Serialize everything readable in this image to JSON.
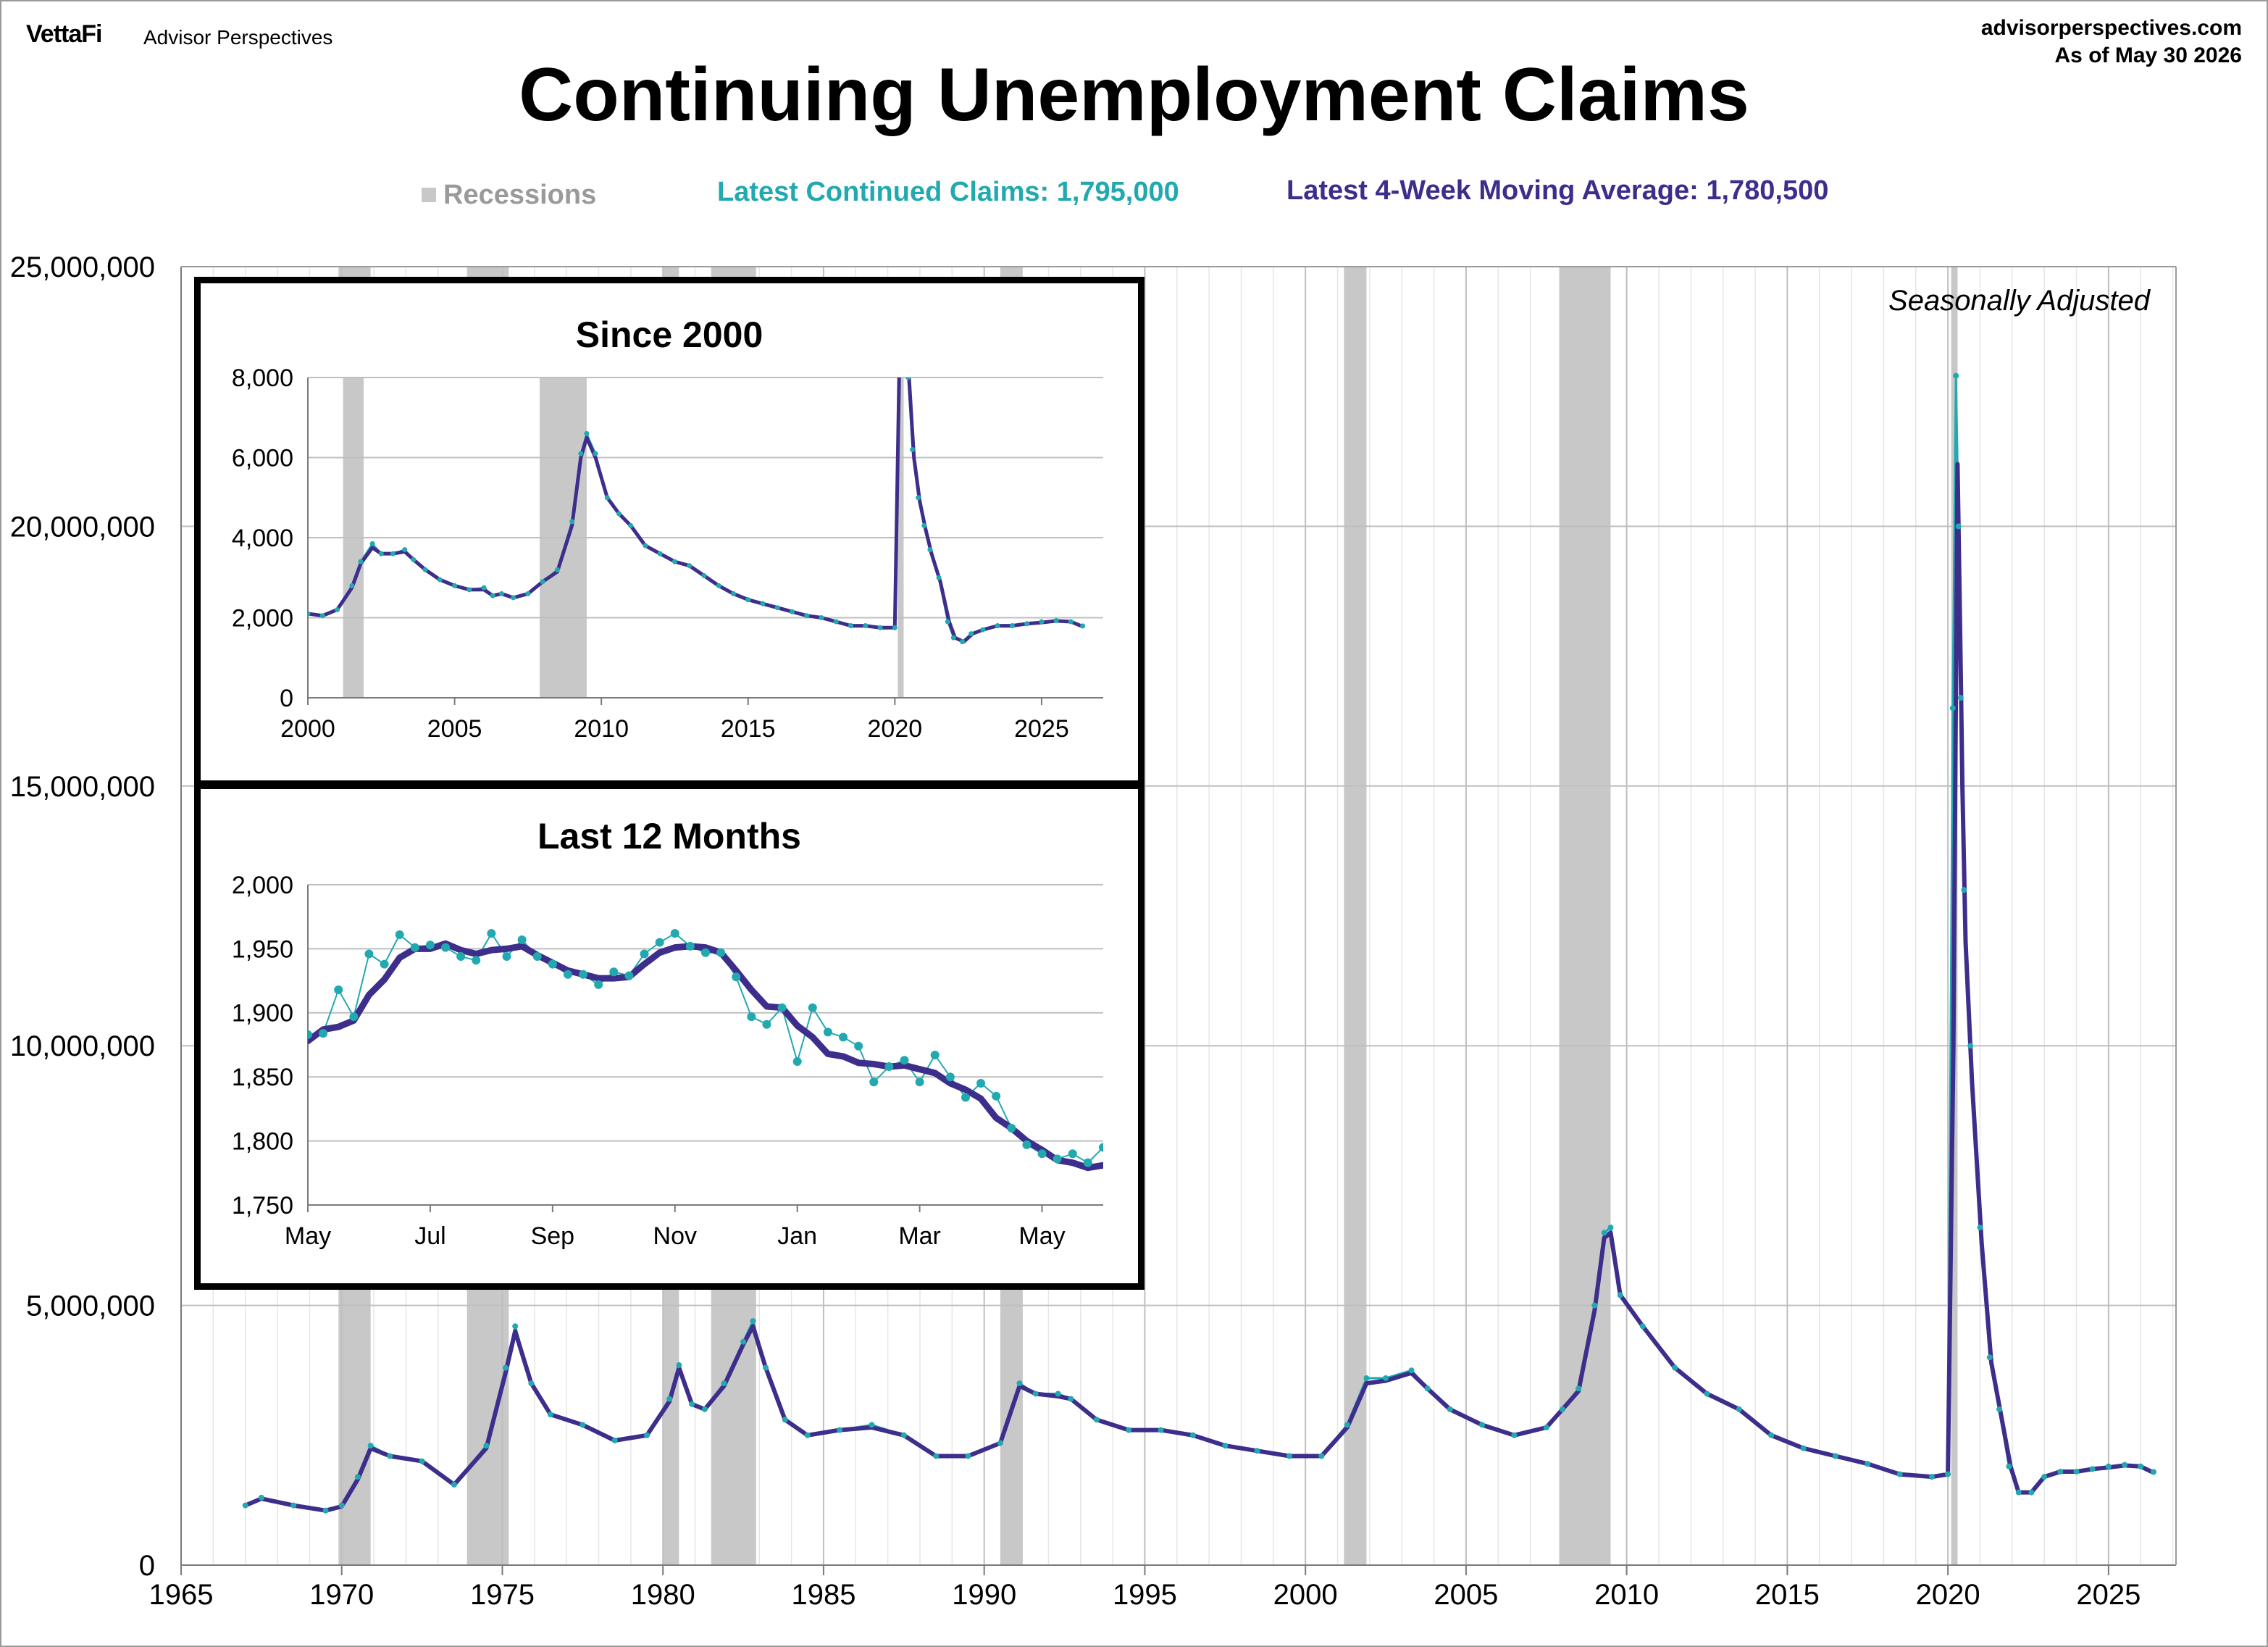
{
  "header": {
    "brand": "VettaFi",
    "brand_sub": "Advisor Perspectives",
    "site": "advisorperspectives.com",
    "as_of": "As of May 30 2026",
    "title": "Continuing Unemployment Claims"
  },
  "legend": {
    "recessions": "Recessions",
    "latest_claims": "Latest Continued Claims: 1,795,000",
    "latest_ma": "Latest 4-Week Moving Average: 1,780,500"
  },
  "colors": {
    "claims": "#22a9b0",
    "moving_average": "#3d2e8c",
    "recession": "#c8c8c8",
    "grid": "#bfbfbf"
  },
  "chart_data": [
    {
      "id": "main",
      "type": "line",
      "annotation": "Seasonally Adjusted",
      "xlim": [
        1965,
        2027.1
      ],
      "ylim": [
        0,
        25000000
      ],
      "x_ticks": [
        "1965",
        "1970",
        "1975",
        "1980",
        "1985",
        "1990",
        "1995",
        "2000",
        "2005",
        "2010",
        "2015",
        "2020",
        "2025"
      ],
      "y_ticks": [
        "0",
        "5,000,000",
        "10,000,000",
        "15,000,000",
        "20,000,000",
        "25,000,000"
      ],
      "recessions": [
        [
          1969.9,
          1970.9
        ],
        [
          1973.9,
          1975.2
        ],
        [
          1980.0,
          1980.5
        ],
        [
          1981.5,
          1982.9
        ],
        [
          1990.5,
          1991.2
        ],
        [
          2001.2,
          2001.9
        ],
        [
          2007.9,
          2009.5
        ],
        [
          2020.1,
          2020.3
        ]
      ],
      "series": [
        {
          "key": "claims",
          "x": [
            1967.0,
            1967.5,
            1968.5,
            1969.5,
            1970.0,
            1970.5,
            1970.9,
            1971.5,
            1972.5,
            1973.5,
            1974.5,
            1975.1,
            1975.4,
            1975.9,
            1976.5,
            1977.5,
            1978.5,
            1979.5,
            1980.2,
            1980.5,
            1980.9,
            1981.3,
            1981.9,
            1982.5,
            1982.8,
            1983.2,
            1983.8,
            1984.5,
            1985.5,
            1986.5,
            1987.5,
            1988.5,
            1989.5,
            1990.5,
            1991.1,
            1991.6,
            1992.3,
            1992.7,
            1993.5,
            1994.5,
            1995.5,
            1996.5,
            1997.5,
            1998.5,
            1999.5,
            2000.5,
            2001.3,
            2001.9,
            2002.5,
            2003.3,
            2003.8,
            2004.5,
            2005.5,
            2006.5,
            2007.5,
            2008.0,
            2008.5,
            2009.0,
            2009.3,
            2009.5,
            2009.8,
            2010.5,
            2011.5,
            2012.5,
            2013.5,
            2014.5,
            2015.5,
            2016.5,
            2017.5,
            2018.5,
            2019.5,
            2020.0,
            2020.15,
            2020.25,
            2020.33,
            2020.4,
            2020.5,
            2020.7,
            2021.0,
            2021.3,
            2021.6,
            2021.9,
            2022.2,
            2022.6,
            2023.0,
            2023.5,
            2024.0,
            2024.5,
            2025.0,
            2025.5,
            2026.0,
            2026.4
          ],
          "y": [
            1150000,
            1300000,
            1150000,
            1050000,
            1150000,
            1700000,
            2300000,
            2100000,
            2000000,
            1550000,
            2300000,
            3800000,
            4600000,
            3500000,
            2900000,
            2700000,
            2400000,
            2500000,
            3200000,
            3850000,
            3100000,
            3000000,
            3500000,
            4300000,
            4700000,
            3800000,
            2800000,
            2500000,
            2600000,
            2700000,
            2500000,
            2100000,
            2100000,
            2350000,
            3500000,
            3300000,
            3300000,
            3200000,
            2800000,
            2600000,
            2600000,
            2500000,
            2300000,
            2200000,
            2100000,
            2100000,
            2700000,
            3600000,
            3600000,
            3750000,
            3400000,
            3000000,
            2700000,
            2500000,
            2650000,
            3000000,
            3400000,
            5000000,
            6400000,
            6500000,
            5200000,
            4600000,
            3800000,
            3300000,
            3000000,
            2500000,
            2250000,
            2100000,
            1950000,
            1750000,
            1700000,
            1750000,
            16500000,
            22900000,
            20000000,
            16700000,
            13000000,
            10000000,
            6500000,
            4000000,
            3000000,
            1900000,
            1400000,
            1400000,
            1700000,
            1800000,
            1800000,
            1850000,
            1900000,
            1930000,
            1900000,
            1795000
          ]
        },
        {
          "key": "moving_average",
          "x": [
            1967.0,
            1967.5,
            1968.5,
            1969.5,
            1970.0,
            1970.5,
            1970.9,
            1971.5,
            1972.5,
            1973.5,
            1974.5,
            1975.1,
            1975.4,
            1975.9,
            1976.5,
            1977.5,
            1978.5,
            1979.5,
            1980.2,
            1980.5,
            1980.9,
            1981.3,
            1981.9,
            1982.5,
            1982.8,
            1983.2,
            1983.8,
            1984.5,
            1985.5,
            1986.5,
            1987.5,
            1988.5,
            1989.5,
            1990.5,
            1991.1,
            1991.6,
            1992.3,
            1992.7,
            1993.5,
            1994.5,
            1995.5,
            1996.5,
            1997.5,
            1998.5,
            1999.5,
            2000.5,
            2001.3,
            2001.9,
            2002.5,
            2003.3,
            2003.8,
            2004.5,
            2005.5,
            2006.5,
            2007.5,
            2008.0,
            2008.5,
            2009.0,
            2009.3,
            2009.5,
            2009.8,
            2010.5,
            2011.5,
            2012.5,
            2013.5,
            2014.5,
            2015.5,
            2016.5,
            2017.5,
            2018.5,
            2019.5,
            2020.0,
            2020.17,
            2020.3,
            2020.38,
            2020.45,
            2020.55,
            2020.75,
            2021.05,
            2021.35,
            2021.65,
            2021.95,
            2022.2,
            2022.6,
            2023.0,
            2023.5,
            2024.0,
            2024.5,
            2025.0,
            2025.5,
            2026.0,
            2026.4
          ],
          "y": [
            1150000,
            1280000,
            1150000,
            1050000,
            1130000,
            1650000,
            2250000,
            2100000,
            2000000,
            1550000,
            2250000,
            3700000,
            4500000,
            3500000,
            2900000,
            2700000,
            2400000,
            2500000,
            3150000,
            3800000,
            3100000,
            3000000,
            3450000,
            4250000,
            4600000,
            3800000,
            2800000,
            2500000,
            2600000,
            2650000,
            2500000,
            2100000,
            2100000,
            2350000,
            3450000,
            3300000,
            3250000,
            3200000,
            2800000,
            2600000,
            2600000,
            2500000,
            2300000,
            2200000,
            2100000,
            2100000,
            2650000,
            3500000,
            3550000,
            3700000,
            3400000,
            3000000,
            2700000,
            2500000,
            2650000,
            3000000,
            3350000,
            4900000,
            6300000,
            6400000,
            5200000,
            4600000,
            3800000,
            3300000,
            3000000,
            2500000,
            2250000,
            2100000,
            1950000,
            1750000,
            1700000,
            1750000,
            10000000,
            21200000,
            18000000,
            15000000,
            12000000,
            9300000,
            6200000,
            3900000,
            2900000,
            1900000,
            1400000,
            1400000,
            1700000,
            1800000,
            1800000,
            1850000,
            1880000,
            1920000,
            1900000,
            1780500
          ]
        }
      ]
    },
    {
      "id": "since_2000",
      "type": "line",
      "title": "Since 2000",
      "xlim": [
        2000,
        2027.1
      ],
      "ylim": [
        0,
        8000
      ],
      "x_ticks": [
        "2000",
        "2005",
        "2010",
        "2015",
        "2020",
        "2025"
      ],
      "y_ticks": [
        "0",
        "2,000",
        "4,000",
        "6,000",
        "8,000"
      ],
      "recessions": [
        [
          2001.2,
          2001.9
        ],
        [
          2007.9,
          2009.5
        ],
        [
          2020.1,
          2020.3
        ]
      ],
      "series": [
        {
          "key": "claims",
          "x": [
            2000.0,
            2000.5,
            2001.0,
            2001.5,
            2001.8,
            2002.2,
            2002.5,
            2002.9,
            2003.3,
            2003.6,
            2004.0,
            2004.5,
            2005.0,
            2005.5,
            2006.0,
            2006.3,
            2006.6,
            2007.0,
            2007.5,
            2008.0,
            2008.5,
            2009.0,
            2009.3,
            2009.5,
            2009.8,
            2010.2,
            2010.6,
            2011.0,
            2011.5,
            2012.0,
            2012.5,
            2013.0,
            2013.5,
            2014.0,
            2014.5,
            2015.0,
            2015.5,
            2016.0,
            2016.5,
            2017.0,
            2017.5,
            2018.0,
            2018.5,
            2019.0,
            2019.5,
            2020.0,
            2020.15,
            2020.25,
            2020.35,
            2020.45,
            2020.6,
            2020.8,
            2021.0,
            2021.2,
            2021.5,
            2021.8,
            2022.0,
            2022.3,
            2022.6,
            2023.0,
            2023.5,
            2024.0,
            2024.5,
            2025.0,
            2025.5,
            2026.0,
            2026.4
          ],
          "y": [
            2100,
            2050,
            2200,
            2800,
            3400,
            3850,
            3600,
            3600,
            3700,
            3450,
            3200,
            2950,
            2800,
            2700,
            2750,
            2550,
            2600,
            2500,
            2600,
            2900,
            3200,
            4400,
            6100,
            6600,
            6100,
            5000,
            4600,
            4300,
            3800,
            3600,
            3400,
            3300,
            3050,
            2800,
            2600,
            2450,
            2350,
            2250,
            2150,
            2050,
            2000,
            1900,
            1800,
            1800,
            1750,
            1750,
            9000,
            9000,
            9000,
            8000,
            6200,
            5000,
            4300,
            3700,
            3000,
            1900,
            1500,
            1400,
            1600,
            1700,
            1800,
            1800,
            1850,
            1900,
            1930,
            1900,
            1795
          ]
        },
        {
          "key": "moving_average",
          "x": [
            2000.0,
            2000.5,
            2001.0,
            2001.5,
            2001.8,
            2002.2,
            2002.5,
            2002.9,
            2003.3,
            2003.6,
            2004.0,
            2004.5,
            2005.0,
            2005.5,
            2006.0,
            2006.3,
            2006.6,
            2007.0,
            2007.5,
            2008.0,
            2008.5,
            2009.0,
            2009.3,
            2009.5,
            2009.8,
            2010.2,
            2010.6,
            2011.0,
            2011.5,
            2012.0,
            2012.5,
            2013.0,
            2013.5,
            2014.0,
            2014.5,
            2015.0,
            2015.5,
            2016.0,
            2016.5,
            2017.0,
            2017.5,
            2018.0,
            2018.5,
            2019.0,
            2019.5,
            2020.0,
            2020.17,
            2020.3,
            2020.4,
            2020.5,
            2020.65,
            2020.85,
            2021.05,
            2021.25,
            2021.55,
            2021.85,
            2022.05,
            2022.35,
            2022.65,
            2023.0,
            2023.5,
            2024.0,
            2024.5,
            2025.0,
            2025.5,
            2026.0,
            2026.4
          ],
          "y": [
            2100,
            2050,
            2200,
            2750,
            3350,
            3750,
            3600,
            3600,
            3650,
            3450,
            3200,
            2950,
            2800,
            2700,
            2700,
            2550,
            2600,
            2500,
            2600,
            2900,
            3150,
            4300,
            6000,
            6500,
            6000,
            5000,
            4600,
            4300,
            3800,
            3600,
            3400,
            3300,
            3050,
            2800,
            2600,
            2450,
            2350,
            2250,
            2150,
            2050,
            2000,
            1900,
            1800,
            1800,
            1750,
            1750,
            9000,
            9000,
            9000,
            7800,
            6000,
            4900,
            4200,
            3600,
            2900,
            1900,
            1500,
            1400,
            1600,
            1700,
            1800,
            1800,
            1850,
            1880,
            1920,
            1900,
            1780
          ]
        }
      ]
    },
    {
      "id": "last_12_months",
      "type": "line",
      "title": "Last 12 Months",
      "xlim": [
        0,
        13
      ],
      "ylim": [
        1750,
        2000
      ],
      "x_ticks": [
        "May",
        "Jul",
        "Sep",
        "Nov",
        "Jan",
        "Mar",
        "May"
      ],
      "x_tick_pos": [
        0,
        2,
        4,
        6,
        8,
        10,
        12
      ],
      "y_ticks": [
        "1,750",
        "1,800",
        "1,850",
        "1,900",
        "1,950",
        "2,000"
      ],
      "series": [
        {
          "key": "claims",
          "x": [
            0.0,
            0.25,
            0.5,
            0.75,
            1.0,
            1.25,
            1.5,
            1.75,
            2.0,
            2.25,
            2.5,
            2.75,
            3.0,
            3.25,
            3.5,
            3.75,
            4.0,
            4.25,
            4.5,
            4.75,
            5.0,
            5.25,
            5.5,
            5.75,
            6.0,
            6.25,
            6.5,
            6.75,
            7.0,
            7.25,
            7.5,
            7.75,
            8.0,
            8.25,
            8.5,
            8.75,
            9.0,
            9.25,
            9.5,
            9.75,
            10.0,
            10.25,
            10.5,
            10.75,
            11.0,
            11.25,
            11.5,
            11.75,
            12.0,
            12.25,
            12.5,
            12.75,
            13.0
          ],
          "y": [
            1883,
            1884,
            1918,
            1897,
            1946,
            1938,
            1961,
            1951,
            1953,
            1951,
            1944,
            1941,
            1962,
            1944,
            1957,
            1944,
            1938,
            1930,
            1930,
            1922,
            1932,
            1929,
            1946,
            1955,
            1962,
            1952,
            1947,
            1947,
            1928,
            1897,
            1891,
            1904,
            1862,
            1904,
            1885,
            1881,
            1874,
            1846,
            1858,
            1863,
            1846,
            1867,
            1850,
            1834,
            1845,
            1835,
            1810,
            1797,
            1790,
            1786,
            1790,
            1783,
            1795
          ]
        },
        {
          "key": "moving_average",
          "x": [
            0.0,
            0.25,
            0.5,
            0.75,
            1.0,
            1.25,
            1.5,
            1.75,
            2.0,
            2.25,
            2.5,
            2.75,
            3.0,
            3.25,
            3.5,
            3.75,
            4.0,
            4.25,
            4.5,
            4.75,
            5.0,
            5.25,
            5.5,
            5.75,
            6.0,
            6.25,
            6.5,
            6.75,
            7.0,
            7.25,
            7.5,
            7.75,
            8.0,
            8.25,
            8.5,
            8.75,
            9.0,
            9.25,
            9.5,
            9.75,
            10.0,
            10.25,
            10.5,
            10.75,
            11.0,
            11.25,
            11.5,
            11.75,
            12.0,
            12.25,
            12.5,
            12.75,
            13.0
          ],
          "y": [
            1878,
            1887,
            1889,
            1894,
            1914,
            1926,
            1943,
            1950,
            1950,
            1954,
            1949,
            1946,
            1949,
            1950,
            1952,
            1945,
            1939,
            1933,
            1930,
            1927,
            1927,
            1928,
            1938,
            1947,
            1951,
            1952,
            1951,
            1947,
            1933,
            1918,
            1905,
            1904,
            1890,
            1881,
            1868,
            1866,
            1861,
            1860,
            1858,
            1859,
            1856,
            1853,
            1845,
            1840,
            1833,
            1818,
            1810,
            1800,
            1793,
            1785,
            1783,
            1779,
            1781
          ]
        }
      ]
    }
  ]
}
